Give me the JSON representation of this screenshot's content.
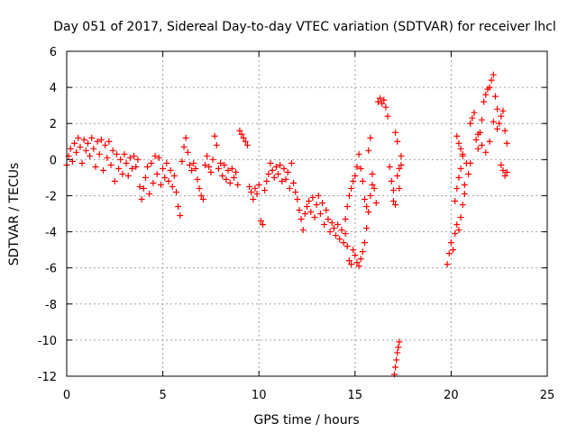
{
  "chart_data": {
    "type": "scatter",
    "title": "Day 051 of 2017, Sidereal Day-to-day VTEC variation (SDTVAR) for receiver lhcl",
    "xlabel": "GPS time / hours",
    "ylabel": "SDTVAR / TECUs",
    "xlim": [
      0,
      25
    ],
    "ylim": [
      -12,
      6
    ],
    "xticks": [
      "0",
      "5",
      "10",
      "15",
      "20",
      "25"
    ],
    "yticks": [
      "-12",
      "-10",
      "-8",
      "-6",
      "-4",
      "-2",
      "0",
      "2",
      "4",
      "6"
    ],
    "grid": true,
    "marker": "+",
    "color": "#ff0000",
    "series": [
      {
        "name": "SDTVAR",
        "points": [
          [
            0.0,
            -0.3
          ],
          [
            0.1,
            0.2
          ],
          [
            0.2,
            0.6
          ],
          [
            0.3,
            -0.1
          ],
          [
            0.4,
            0.9
          ],
          [
            0.5,
            0.4
          ],
          [
            0.6,
            1.2
          ],
          [
            0.7,
            0.7
          ],
          [
            0.8,
            -0.2
          ],
          [
            0.9,
            1.1
          ],
          [
            1.0,
            0.5
          ],
          [
            1.1,
            0.9
          ],
          [
            1.2,
            0.2
          ],
          [
            1.3,
            1.2
          ],
          [
            1.4,
            0.6
          ],
          [
            1.5,
            -0.4
          ],
          [
            1.6,
            1.0
          ],
          [
            1.7,
            0.3
          ],
          [
            1.8,
            1.1
          ],
          [
            1.9,
            -0.6
          ],
          [
            2.0,
            0.8
          ],
          [
            2.1,
            0.1
          ],
          [
            2.2,
            1.0
          ],
          [
            2.3,
            -0.3
          ],
          [
            2.4,
            0.5
          ],
          [
            2.5,
            -1.2
          ],
          [
            2.6,
            0.3
          ],
          [
            2.7,
            -0.5
          ],
          [
            2.8,
            0.0
          ],
          [
            2.9,
            -0.8
          ],
          [
            3.0,
            0.3
          ],
          [
            3.1,
            -0.2
          ],
          [
            3.2,
            -0.9
          ],
          [
            3.3,
            0.1
          ],
          [
            3.4,
            -0.5
          ],
          [
            3.5,
            0.2
          ],
          [
            3.6,
            -0.4
          ],
          [
            3.7,
            0.0
          ],
          [
            3.8,
            -1.5
          ],
          [
            3.9,
            -2.2
          ],
          [
            4.0,
            -1.6
          ],
          [
            4.1,
            -1.0
          ],
          [
            4.2,
            -0.4
          ],
          [
            4.3,
            -1.9
          ],
          [
            4.4,
            -0.2
          ],
          [
            4.5,
            -1.3
          ],
          [
            4.6,
            0.2
          ],
          [
            4.7,
            -0.8
          ],
          [
            4.8,
            0.1
          ],
          [
            4.9,
            -1.4
          ],
          [
            5.0,
            -0.5
          ],
          [
            5.1,
            -1.0
          ],
          [
            5.2,
            -0.2
          ],
          [
            5.3,
            -1.2
          ],
          [
            5.4,
            -0.6
          ],
          [
            5.5,
            -1.5
          ],
          [
            5.6,
            -0.9
          ],
          [
            5.7,
            -1.8
          ],
          [
            5.8,
            -2.6
          ],
          [
            5.9,
            -3.1
          ],
          [
            6.0,
            -0.1
          ],
          [
            6.1,
            0.7
          ],
          [
            6.2,
            1.2
          ],
          [
            6.3,
            0.4
          ],
          [
            6.4,
            -0.3
          ],
          [
            6.5,
            -0.6
          ],
          [
            6.6,
            -0.2
          ],
          [
            6.7,
            -0.5
          ],
          [
            6.8,
            -1.1
          ],
          [
            6.9,
            -1.6
          ],
          [
            7.0,
            -2.0
          ],
          [
            7.1,
            -2.2
          ],
          [
            7.2,
            -0.3
          ],
          [
            7.3,
            0.2
          ],
          [
            7.4,
            -0.4
          ],
          [
            7.5,
            -0.7
          ],
          [
            7.6,
            0.0
          ],
          [
            7.7,
            1.3
          ],
          [
            7.8,
            0.8
          ],
          [
            7.9,
            -0.5
          ],
          [
            8.0,
            -0.2
          ],
          [
            8.1,
            -0.9
          ],
          [
            8.2,
            -0.3
          ],
          [
            8.3,
            -1.1
          ],
          [
            8.4,
            -0.6
          ],
          [
            8.5,
            -1.3
          ],
          [
            8.6,
            -0.5
          ],
          [
            8.7,
            -1.0
          ],
          [
            8.8,
            -0.7
          ],
          [
            8.9,
            -1.4
          ],
          [
            9.0,
            1.6
          ],
          [
            9.1,
            1.4
          ],
          [
            9.2,
            1.2
          ],
          [
            9.3,
            1.0
          ],
          [
            9.4,
            0.8
          ],
          [
            9.5,
            -1.5
          ],
          [
            9.6,
            -1.8
          ],
          [
            9.7,
            -2.2
          ],
          [
            9.8,
            -1.6
          ],
          [
            9.9,
            -1.9
          ],
          [
            10.0,
            -1.4
          ],
          [
            10.1,
            -3.4
          ],
          [
            10.2,
            -3.6
          ],
          [
            10.3,
            -1.7
          ],
          [
            10.4,
            -1.2
          ],
          [
            10.5,
            -0.8
          ],
          [
            10.6,
            -0.2
          ],
          [
            10.7,
            -0.6
          ],
          [
            10.8,
            -1.0
          ],
          [
            10.9,
            -0.4
          ],
          [
            11.0,
            -0.8
          ],
          [
            11.1,
            -0.3
          ],
          [
            11.2,
            -1.2
          ],
          [
            11.3,
            -0.5
          ],
          [
            11.4,
            -1.1
          ],
          [
            11.5,
            -0.7
          ],
          [
            11.6,
            -1.6
          ],
          [
            11.7,
            -0.2
          ],
          [
            11.8,
            -1.3
          ],
          [
            11.9,
            -1.8
          ],
          [
            12.0,
            -2.2
          ],
          [
            12.1,
            -2.8
          ],
          [
            12.2,
            -3.3
          ],
          [
            12.3,
            -3.9
          ],
          [
            12.4,
            -3.0
          ],
          [
            12.5,
            -2.6
          ],
          [
            12.6,
            -2.3
          ],
          [
            12.7,
            -2.9
          ],
          [
            12.8,
            -2.1
          ],
          [
            12.9,
            -3.2
          ],
          [
            13.0,
            -2.5
          ],
          [
            13.1,
            -2.0
          ],
          [
            13.2,
            -3.0
          ],
          [
            13.3,
            -2.4
          ],
          [
            13.4,
            -3.6
          ],
          [
            13.5,
            -2.8
          ],
          [
            13.6,
            -3.3
          ],
          [
            13.7,
            -4.0
          ],
          [
            13.8,
            -3.5
          ],
          [
            13.9,
            -3.8
          ],
          [
            14.0,
            -4.2
          ],
          [
            14.1,
            -3.6
          ],
          [
            14.2,
            -4.4
          ],
          [
            14.3,
            -3.9
          ],
          [
            14.4,
            -4.6
          ],
          [
            14.5,
            -4.1
          ],
          [
            14.6,
            -4.8
          ],
          [
            14.7,
            -5.6
          ],
          [
            14.8,
            -5.8
          ],
          [
            14.9,
            -5.0
          ],
          [
            15.0,
            -5.3
          ],
          [
            15.1,
            -5.7
          ],
          [
            15.2,
            -5.9
          ],
          [
            15.3,
            -5.5
          ],
          [
            15.4,
            -5.1
          ],
          [
            15.5,
            -4.6
          ],
          [
            15.6,
            -3.8
          ],
          [
            15.7,
            -2.9
          ],
          [
            15.8,
            -2.0
          ],
          [
            15.9,
            -1.4
          ],
          [
            14.5,
            -3.3
          ],
          [
            14.6,
            -2.6
          ],
          [
            14.7,
            -2.0
          ],
          [
            14.8,
            -1.6
          ],
          [
            14.9,
            -1.2
          ],
          [
            15.0,
            -0.9
          ],
          [
            15.1,
            -0.4
          ],
          [
            15.2,
            0.3
          ],
          [
            15.3,
            -0.5
          ],
          [
            15.4,
            -1.2
          ],
          [
            15.5,
            -2.2
          ],
          [
            15.6,
            -2.6
          ],
          [
            15.7,
            0.5
          ],
          [
            15.8,
            1.2
          ],
          [
            15.9,
            -0.8
          ],
          [
            16.0,
            -1.6
          ],
          [
            16.1,
            -2.4
          ],
          [
            16.2,
            3.2
          ],
          [
            16.3,
            3.4
          ],
          [
            16.4,
            3.1
          ],
          [
            16.5,
            3.3
          ],
          [
            16.6,
            2.9
          ],
          [
            16.7,
            2.4
          ],
          [
            16.8,
            -0.4
          ],
          [
            16.9,
            -1.2
          ],
          [
            17.0,
            -2.3
          ],
          [
            17.1,
            1.5
          ],
          [
            17.2,
            1.0
          ],
          [
            17.3,
            -0.5
          ],
          [
            17.4,
            0.2
          ],
          [
            17.0,
            -1.7
          ],
          [
            17.1,
            -2.5
          ],
          [
            17.2,
            -0.9
          ],
          [
            17.3,
            -1.6
          ],
          [
            17.4,
            -0.3
          ],
          [
            17.05,
            -11.9
          ],
          [
            17.1,
            -11.5
          ],
          [
            17.15,
            -11.1
          ],
          [
            17.2,
            -10.7
          ],
          [
            17.25,
            -10.4
          ],
          [
            17.3,
            -10.1
          ],
          [
            19.8,
            -5.8
          ],
          [
            19.9,
            -5.2
          ],
          [
            20.0,
            -4.6
          ],
          [
            20.1,
            -5.0
          ],
          [
            20.2,
            -4.1
          ],
          [
            20.3,
            -3.6
          ],
          [
            20.4,
            -3.9
          ],
          [
            20.5,
            -3.2
          ],
          [
            20.6,
            -2.5
          ],
          [
            20.7,
            -1.9
          ],
          [
            20.2,
            -2.3
          ],
          [
            20.3,
            -1.6
          ],
          [
            20.4,
            -1.0
          ],
          [
            20.5,
            -0.5
          ],
          [
            20.6,
            0.3
          ],
          [
            20.7,
            -1.4
          ],
          [
            20.8,
            -0.2
          ],
          [
            20.9,
            -0.8
          ],
          [
            21.0,
            -0.2
          ],
          [
            20.3,
            1.3
          ],
          [
            20.4,
            0.9
          ],
          [
            20.5,
            0.6
          ],
          [
            20.6,
            0.2
          ],
          [
            21.0,
            2.0
          ],
          [
            21.1,
            2.3
          ],
          [
            21.2,
            2.6
          ],
          [
            21.3,
            1.1
          ],
          [
            21.4,
            0.6
          ],
          [
            21.5,
            1.5
          ],
          [
            21.6,
            2.2
          ],
          [
            21.7,
            3.2
          ],
          [
            21.8,
            3.6
          ],
          [
            21.9,
            3.9
          ],
          [
            22.0,
            4.0
          ],
          [
            22.1,
            4.4
          ],
          [
            22.2,
            4.7
          ],
          [
            22.3,
            3.5
          ],
          [
            22.4,
            2.8
          ],
          [
            22.5,
            2.0
          ],
          [
            22.6,
            2.4
          ],
          [
            22.7,
            2.7
          ],
          [
            22.8,
            1.6
          ],
          [
            22.9,
            0.9
          ],
          [
            21.4,
            1.4
          ],
          [
            21.6,
            0.8
          ],
          [
            21.8,
            0.4
          ],
          [
            22.0,
            1.0
          ],
          [
            22.2,
            2.1
          ],
          [
            22.4,
            1.7
          ],
          [
            22.6,
            -0.3
          ],
          [
            22.7,
            -0.6
          ],
          [
            22.8,
            -0.9
          ],
          [
            22.9,
            -0.7
          ]
        ]
      }
    ]
  }
}
